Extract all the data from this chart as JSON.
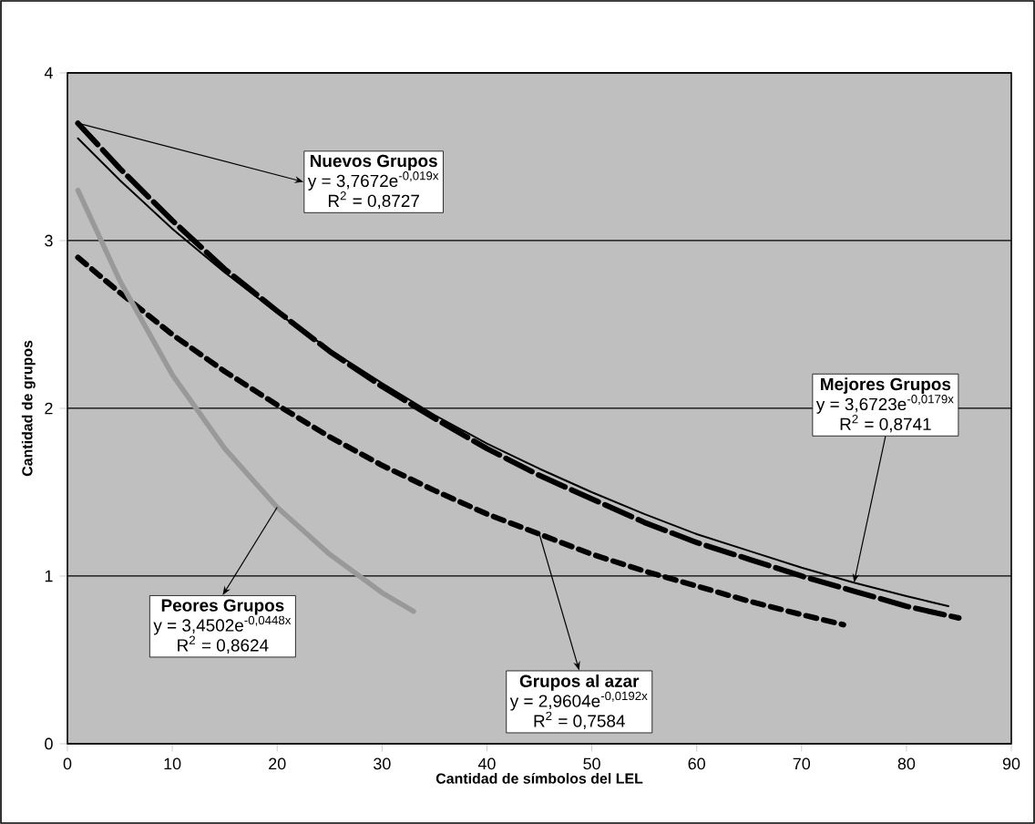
{
  "chart_data": {
    "type": "line",
    "xlabel": "Cantidad de símbolos del LEL",
    "ylabel": "Cantidad de grupos",
    "xlim": [
      0,
      90
    ],
    "ylim": [
      0,
      4
    ],
    "xticks": [
      0,
      10,
      20,
      30,
      40,
      50,
      60,
      70,
      80,
      90
    ],
    "yticks": [
      0,
      1,
      2,
      3,
      4
    ],
    "grid": "y",
    "marker": "none",
    "series": [
      {
        "color": "#000000",
        "line_style": "dashed",
        "x": [
          1,
          5,
          10,
          15,
          20,
          25,
          30,
          35,
          40,
          45,
          50,
          55,
          60,
          65,
          70,
          75,
          80,
          85
        ],
        "values": [
          3.7,
          3.43,
          3.12,
          2.83,
          2.58,
          2.34,
          2.13,
          1.94,
          1.76,
          1.6,
          1.46,
          1.32,
          1.2,
          1.1,
          1.0,
          0.91,
          0.82,
          0.75
        ]
      },
      {
        "color": "#000000",
        "line_style": "solid",
        "x": [
          1,
          5,
          10,
          15,
          20,
          25,
          30,
          35,
          40,
          45,
          50,
          55,
          60,
          65,
          70,
          75,
          80,
          84
        ],
        "values": [
          3.61,
          3.36,
          3.07,
          2.81,
          2.57,
          2.35,
          2.15,
          1.96,
          1.79,
          1.64,
          1.5,
          1.37,
          1.25,
          1.15,
          1.05,
          0.96,
          0.88,
          0.82
        ]
      },
      {
        "color": "#000000",
        "line_style": "dashed",
        "x": [
          1,
          5,
          10,
          15,
          20,
          25,
          30,
          35,
          40,
          45,
          50,
          55,
          60,
          65,
          70,
          74
        ],
        "values": [
          2.9,
          2.69,
          2.44,
          2.22,
          2.02,
          1.83,
          1.66,
          1.51,
          1.37,
          1.25,
          1.13,
          1.03,
          0.94,
          0.85,
          0.77,
          0.71
        ]
      },
      {
        "color": "#999999",
        "line_style": "solid",
        "x": [
          1,
          5,
          10,
          15,
          20,
          25,
          30,
          33
        ],
        "values": [
          3.3,
          2.76,
          2.2,
          1.76,
          1.41,
          1.13,
          0.9,
          0.79
        ]
      }
    ],
    "annotations": [
      {
        "text": "Nuevos Grupos",
        "x": 1,
        "y": 3.7
      },
      "y = 3,7672e$^{-0,019x}$",
      "R$^{2}$ = 0,8727",
      "Mejores Grupos",
      "y = 3,6723e$^{-0,0179x}$",
      {
        "text": "R$^{2}$ = 0,8741",
        "x": 75,
        "y": 0.96
      },
      {
        "text": "Grupos al azar",
        "x": 45,
        "y": 1.25
      },
      "y = 2,9604e$^{-0,0192x}$",
      "R$^{2}$ = 0,7584",
      {
        "text": "Peores Grupos",
        "x": 20,
        "y": 1.41
      },
      "y = 3,4502e$^{-0,0448x}$",
      "R$^{2}$ = 0,8624"
    ]
  }
}
